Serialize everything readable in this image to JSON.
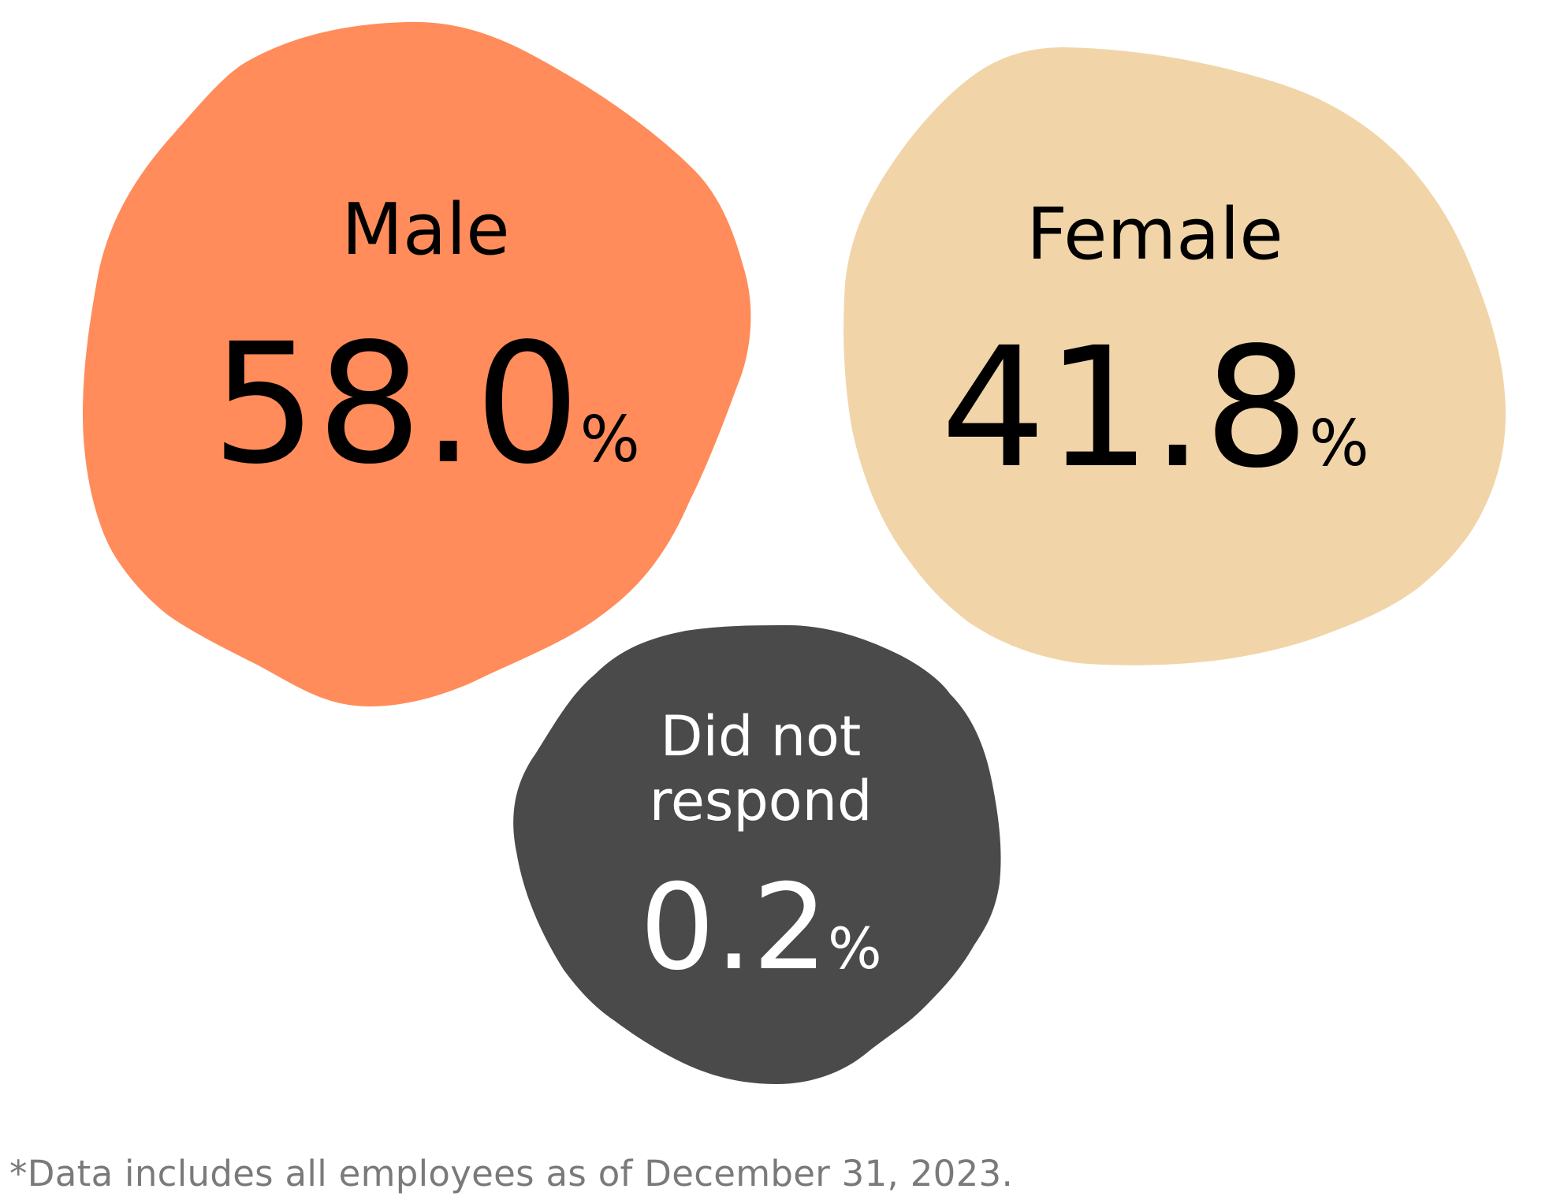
{
  "chart_data": {
    "type": "bubble",
    "series": [
      {
        "name": "Male",
        "label_lines": [
          "Male"
        ],
        "value": 58.0,
        "value_text": "58.0",
        "unit": "%",
        "color": "#FF8C5A",
        "text_color": "#000000"
      },
      {
        "name": "Female",
        "label_lines": [
          "Female"
        ],
        "value": 41.8,
        "value_text": "41.8",
        "unit": "%",
        "color": "#F1D5A8",
        "text_color": "#000000"
      },
      {
        "name": "Did not respond",
        "label_lines": [
          "Did not",
          "respond"
        ],
        "value": 0.2,
        "value_text": "0.2",
        "unit": "%",
        "color": "#4A4A4A",
        "text_color": "#ffffff"
      }
    ],
    "footnote": "*Data includes all employees as of December 31, 2023."
  }
}
